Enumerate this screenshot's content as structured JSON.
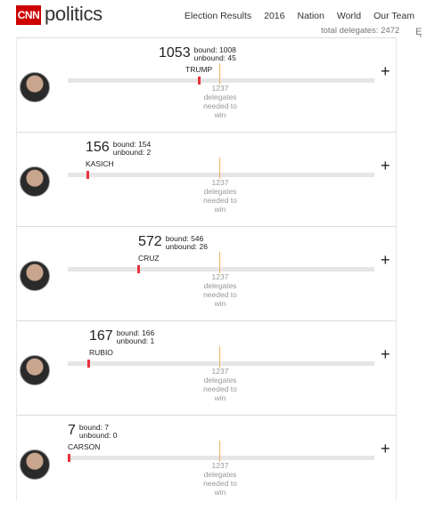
{
  "header": {
    "logo": "CNN",
    "section": "politics",
    "nav": [
      "Election Results",
      "2016",
      "Nation",
      "World",
      "Our Team"
    ],
    "total_delegates": "total delegates: 2472",
    "edge_glyph": "Ę"
  },
  "threshold_lines": [
    "1237",
    "delegates",
    "needed to",
    "win"
  ],
  "candidates": [
    {
      "name": "TRUMP",
      "total": "1053",
      "bound": "bound: 1008",
      "unbound": "unbound: 45",
      "fraction": 0.426
    },
    {
      "name": "KASICH",
      "total": "156",
      "bound": "bound: 154",
      "unbound": "unbound: 2",
      "fraction": 0.063
    },
    {
      "name": "CRUZ",
      "total": "572",
      "bound": "bound: 546",
      "unbound": "unbound: 26",
      "fraction": 0.231
    },
    {
      "name": "RUBIO",
      "total": "167",
      "bound": "bound: 166",
      "unbound": "unbound: 1",
      "fraction": 0.068
    },
    {
      "name": "CARSON",
      "total": "7",
      "bound": "bound: 7",
      "unbound": "unbound: 0",
      "fraction": 0.003
    }
  ],
  "icons": {
    "expand": "plus-icon"
  }
}
